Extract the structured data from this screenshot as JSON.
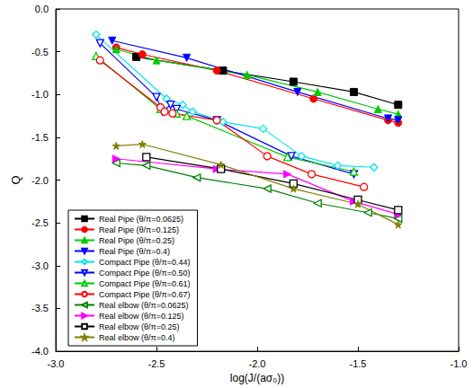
{
  "chart_data": {
    "type": "line",
    "x_label": "log(J/(aσ₀))",
    "y_label": "Q",
    "xlim": [
      -3.0,
      -1.0
    ],
    "ylim": [
      -4.0,
      0.0
    ],
    "xticks": [
      {
        "value": -3.0,
        "label": "-3.0"
      },
      {
        "value": -2.5,
        "label": "-2.5"
      },
      {
        "value": -2.0,
        "label": "-2.0"
      },
      {
        "value": -1.5,
        "label": "-1.5"
      },
      {
        "value": -1.0,
        "label": "-1.0"
      }
    ],
    "yticks": [
      {
        "value": -4.0,
        "label": "-4.0"
      },
      {
        "value": -3.5,
        "label": "-3.5"
      },
      {
        "value": -3.0,
        "label": "-3.0"
      },
      {
        "value": -2.5,
        "label": "-2.5"
      },
      {
        "value": -2.0,
        "label": "-2.0"
      },
      {
        "value": -1.5,
        "label": "-1.5"
      },
      {
        "value": -1.0,
        "label": "-1.0"
      },
      {
        "value": -0.5,
        "label": "-0.5"
      },
      {
        "value": 0.0,
        "label": "0.0"
      }
    ],
    "grid": false,
    "legend": "lower left",
    "line_style": "solid",
    "series": [
      {
        "name": "Real Pipe (θ/π=0.0625)",
        "color": "#000000",
        "marker": "square",
        "x": [
          -2.6,
          -2.17,
          -1.82,
          -1.52,
          -1.3
        ],
        "values": [
          -0.56,
          -0.72,
          -0.85,
          -0.97,
          -1.12
        ]
      },
      {
        "name": "Real Pipe (θ/π=0.125)",
        "color": "#ff0000",
        "marker": "circle",
        "x": [
          -2.7,
          -2.57,
          -2.2,
          -1.72,
          -1.35,
          -1.3
        ],
        "values": [
          -0.45,
          -0.53,
          -0.72,
          -1.05,
          -1.3,
          -1.33
        ]
      },
      {
        "name": "Real Pipe (θ/π=0.25)",
        "color": "#00cc00",
        "marker": "triangle",
        "x": [
          -2.7,
          -2.5,
          -2.05,
          -1.7,
          -1.4,
          -1.3
        ],
        "values": [
          -0.47,
          -0.6,
          -0.77,
          -0.97,
          -1.17,
          -1.23
        ]
      },
      {
        "name": "Real Pipe (θ/π=0.4)",
        "color": "#0000ff",
        "marker": "triangle-down",
        "x": [
          -2.72,
          -2.35,
          -1.8,
          -1.35,
          -1.3
        ],
        "values": [
          -0.37,
          -0.57,
          -0.97,
          -1.28,
          -1.3
        ]
      },
      {
        "name": "Compact Pipe (θ/π=0.44)",
        "color": "#00e5ee",
        "marker": "open-diamond",
        "x": [
          -2.8,
          -2.45,
          -2.37,
          -2.32,
          -2.17,
          -1.97,
          -1.78,
          -1.6,
          -1.42
        ],
        "values": [
          -0.3,
          -1.05,
          -1.12,
          -1.2,
          -1.32,
          -1.4,
          -1.72,
          -1.83,
          -1.85
        ]
      },
      {
        "name": "Compact Pipe (θ/π=0.50)",
        "color": "#0000ff",
        "marker": "open-triangle-down",
        "x": [
          -2.78,
          -2.5,
          -2.47,
          -2.43,
          -2.4,
          -2.2,
          -1.83,
          -1.52
        ],
        "values": [
          -0.4,
          -1.03,
          -1.2,
          -1.12,
          -1.17,
          -1.3,
          -1.72,
          -1.93
        ]
      },
      {
        "name": "Compact Pipe (θ/π=0.61)",
        "color": "#00cc00",
        "marker": "open-triangle",
        "x": [
          -2.8,
          -2.48,
          -2.4,
          -2.35,
          -1.85,
          -1.52
        ],
        "values": [
          -0.55,
          -1.17,
          -1.22,
          -1.25,
          -1.73,
          -1.9
        ]
      },
      {
        "name": "Compact Pipe (θ/π=0.67)",
        "color": "#ff0000",
        "marker": "open-circle",
        "x": [
          -2.78,
          -2.48,
          -2.46,
          -2.42,
          -2.2,
          -1.95,
          -1.73,
          -1.47
        ],
        "values": [
          -0.6,
          -1.15,
          -1.2,
          -1.22,
          -1.3,
          -1.72,
          -1.93,
          -2.08
        ]
      },
      {
        "name": "Real elbow (θ/π=0.0625)",
        "color": "#008000",
        "marker": "open-triangle-left",
        "x": [
          -2.7,
          -2.55,
          -2.3,
          -1.95,
          -1.7,
          -1.45,
          -1.3
        ],
        "values": [
          -1.8,
          -1.83,
          -1.97,
          -2.1,
          -2.27,
          -2.38,
          -2.45
        ]
      },
      {
        "name": "Real elbow (θ/π=0.125)",
        "color": "#ff00ff",
        "marker": "triangle-right",
        "x": [
          -2.7,
          -2.2,
          -1.85,
          -1.52,
          -1.3
        ],
        "values": [
          -1.75,
          -1.87,
          -1.93,
          -2.25,
          -2.4
        ]
      },
      {
        "name": "Real elbow (θ/π=0.25)",
        "color": "#000000",
        "marker": "open-square",
        "x": [
          -2.55,
          -2.18,
          -1.82,
          -1.5,
          -1.3
        ],
        "values": [
          -1.73,
          -1.87,
          -2.04,
          -2.23,
          -2.35
        ]
      },
      {
        "name": "Real elbow (θ/π=0.4)",
        "color": "#808000",
        "marker": "star",
        "x": [
          -2.7,
          -2.57,
          -2.18,
          -1.82,
          -1.5,
          -1.3
        ],
        "values": [
          -1.6,
          -1.58,
          -1.82,
          -2.1,
          -2.28,
          -2.52
        ]
      }
    ]
  }
}
